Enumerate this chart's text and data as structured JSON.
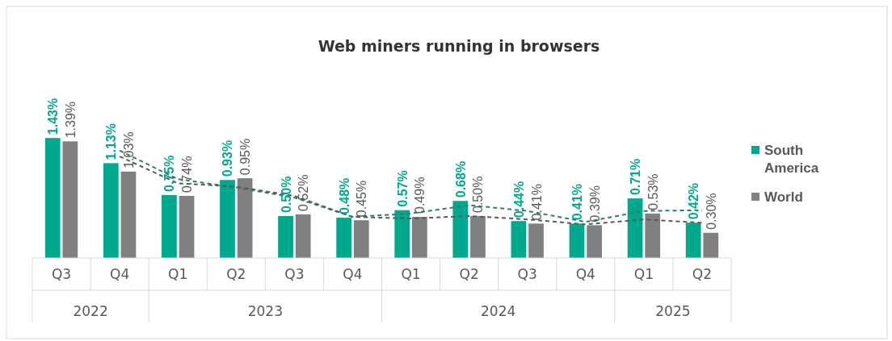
{
  "chart_data": {
    "type": "bar",
    "title": "Web miners running in browsers",
    "categories": [
      "Q3",
      "Q4",
      "Q1",
      "Q2",
      "Q3",
      "Q4",
      "Q1",
      "Q2",
      "Q3",
      "Q4",
      "Q1",
      "Q2"
    ],
    "annotations": [
      "2022",
      "2023",
      "2024",
      "2025"
    ],
    "series": [
      {
        "name": "South America",
        "color": "#00a88e",
        "values": [
          1.43,
          1.13,
          0.75,
          0.93,
          0.5,
          0.48,
          0.57,
          0.68,
          0.44,
          0.41,
          0.71,
          0.42
        ],
        "value_labels": [
          "1.43%",
          "1.13%",
          "0.75%",
          "0.93%",
          "0.50%",
          "0.48%",
          "0.57%",
          "0.68%",
          "0.44%",
          "0.41%",
          "0.71%",
          "0.42%"
        ]
      },
      {
        "name": "World",
        "color": "#808080",
        "values": [
          1.39,
          1.03,
          0.74,
          0.95,
          0.52,
          0.45,
          0.49,
          0.5,
          0.41,
          0.39,
          0.53,
          0.3
        ],
        "value_labels": [
          "1.39%",
          "1.03%",
          "0.74%",
          "0.95%",
          "0.52%",
          "0.45%",
          "0.49%",
          "0.50%",
          "0.41%",
          "0.39%",
          "0.53%",
          "0.30%"
        ]
      },
      {
        "type": "line",
        "line_style": "dashed",
        "color": "#2f7d68",
        "values": [
          null,
          1.28,
          0.94,
          0.84,
          0.72,
          0.49,
          0.53,
          0.63,
          0.56,
          0.43,
          0.56,
          0.57
        ]
      },
      {
        "type": "line",
        "line_style": "dashed",
        "color": "#5a5a5a",
        "values": [
          null,
          1.21,
          0.89,
          0.85,
          0.74,
          0.49,
          0.47,
          0.5,
          0.46,
          0.4,
          0.46,
          0.42
        ]
      }
    ],
    "legend": "right"
  }
}
